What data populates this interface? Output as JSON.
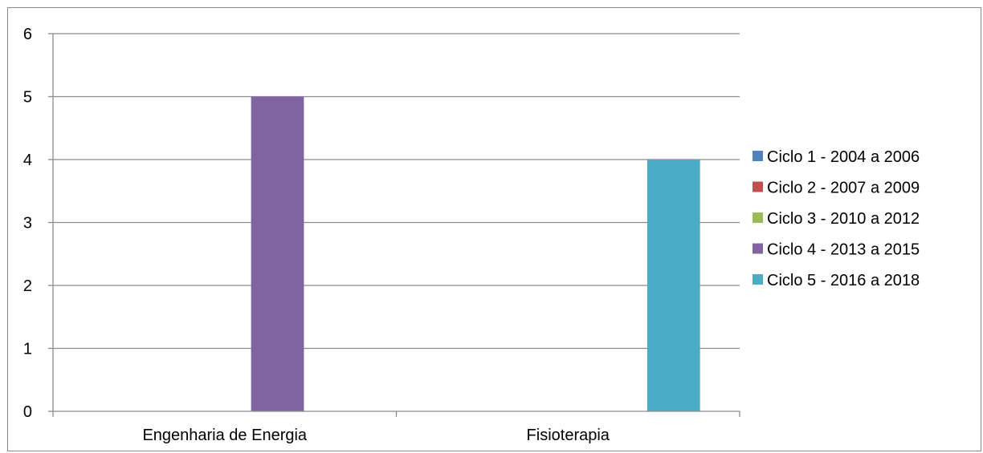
{
  "chart_data": {
    "type": "bar",
    "categories": [
      "Engenharia de Energia",
      "Fisioterapia"
    ],
    "series": [
      {
        "name": "Ciclo 1 - 2004 a 2006",
        "color": "#4F81BD",
        "values": [
          0,
          0
        ]
      },
      {
        "name": "Ciclo 2 - 2007 a 2009",
        "color": "#C0504D",
        "values": [
          0,
          0
        ]
      },
      {
        "name": "Ciclo 3 - 2010 a 2012",
        "color": "#9BBB59",
        "values": [
          0,
          0
        ]
      },
      {
        "name": "Ciclo 4 - 2013 a 2015",
        "color": "#8064A2",
        "values": [
          5,
          0
        ]
      },
      {
        "name": "Ciclo 5 - 2016 a 2018",
        "color": "#4BACC6",
        "values": [
          0,
          4
        ]
      }
    ],
    "ylim": [
      0,
      6
    ],
    "yticks": [
      0,
      1,
      2,
      3,
      4,
      5,
      6
    ],
    "grid": true,
    "legend_position": "right"
  }
}
